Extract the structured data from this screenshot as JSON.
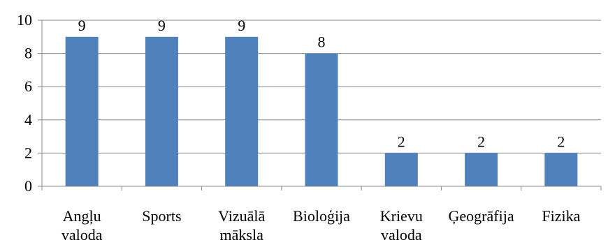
{
  "chart_data": {
    "type": "bar",
    "title": "",
    "xlabel": "",
    "ylabel": "",
    "categories": [
      [
        "Angļu",
        "valoda"
      ],
      [
        "Sports"
      ],
      [
        "Vizuālā",
        "māksla"
      ],
      [
        "Bioloģija"
      ],
      [
        "Krievu",
        "valoda"
      ],
      [
        "Ģeogrāfija"
      ],
      [
        "Fizika"
      ]
    ],
    "values": [
      9,
      9,
      9,
      8,
      2,
      2,
      2
    ],
    "data_labels": [
      "9",
      "9",
      "9",
      "8",
      "2",
      "2",
      "2"
    ],
    "ylim": [
      0,
      10
    ],
    "y_ticks": [
      "0",
      "2",
      "4",
      "6",
      "8",
      "10"
    ],
    "grid": true,
    "legend": "none",
    "colors": {
      "bar": "#4f81bd",
      "grid": "#888888",
      "axis": "#888888"
    }
  }
}
